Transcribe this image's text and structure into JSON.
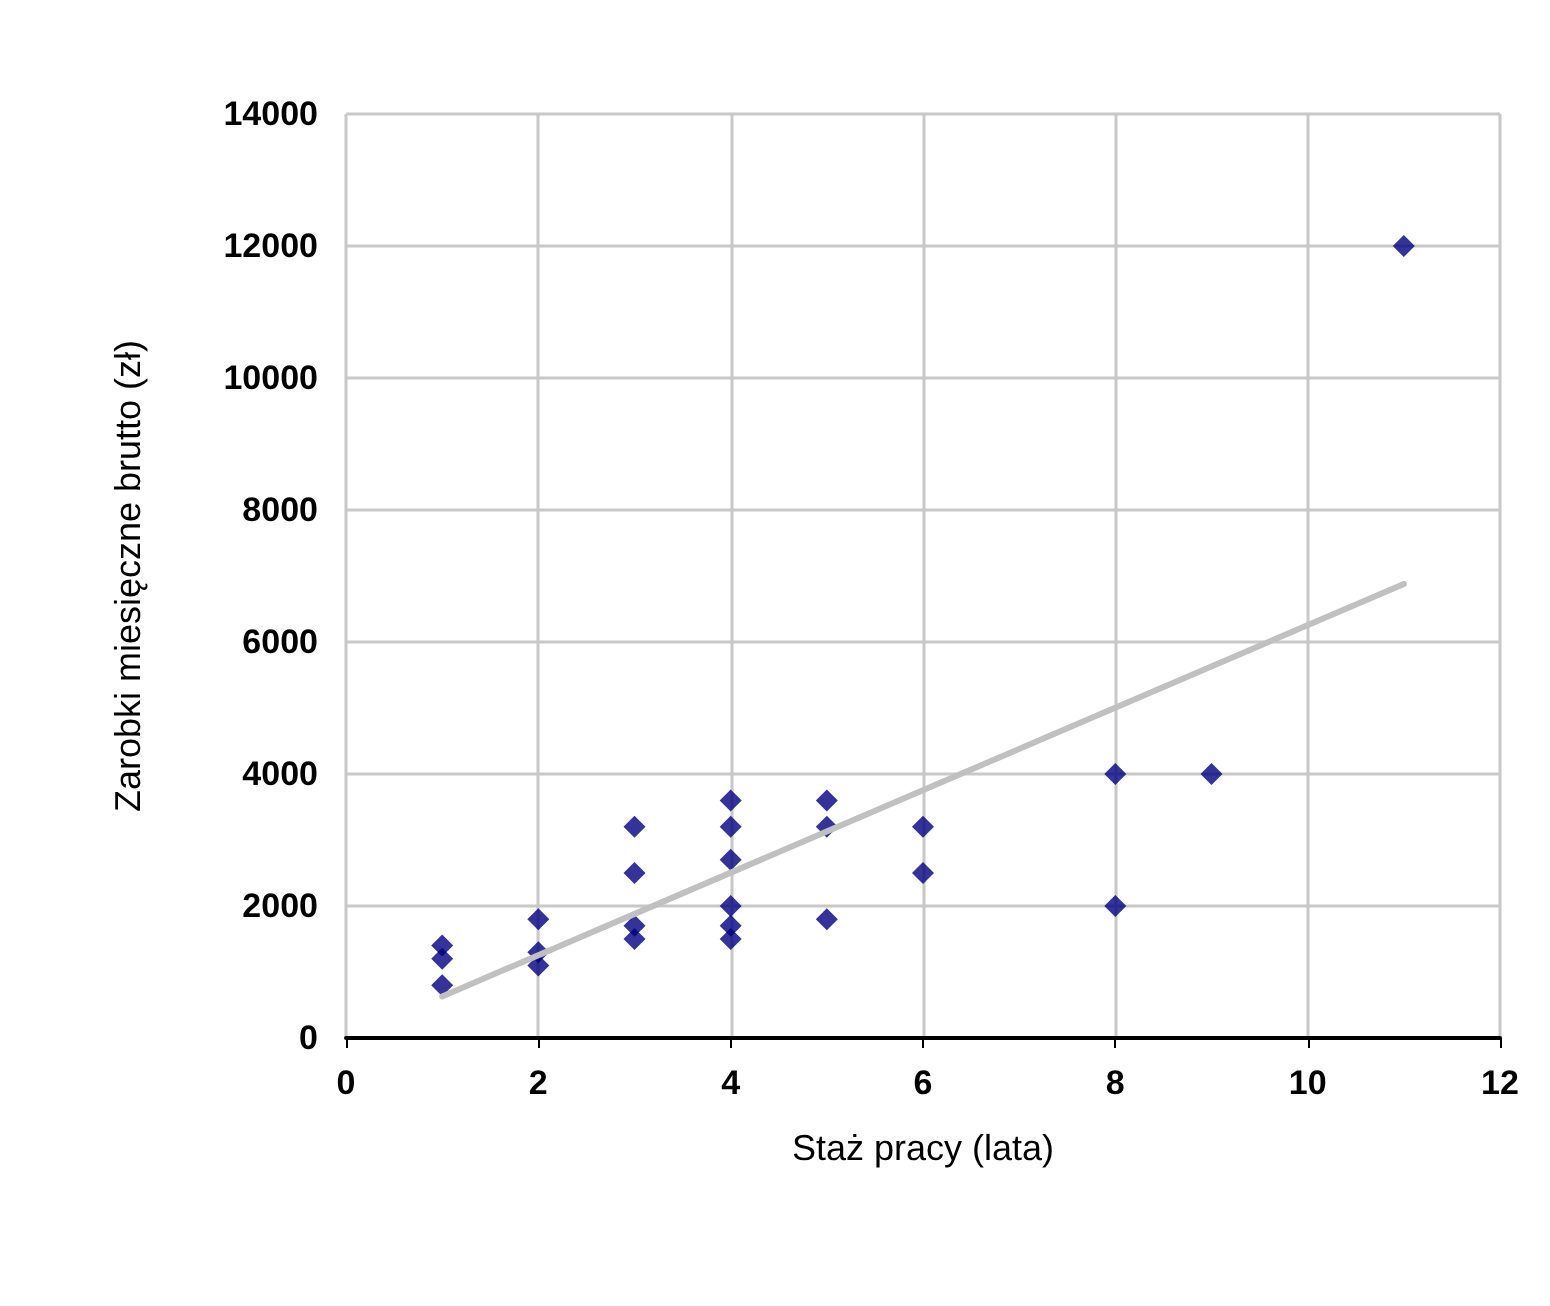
{
  "chart_data": {
    "type": "scatter",
    "xlabel": "Staż pracy (lata)",
    "ylabel": "Zarobki miesięczne brutto (zł)",
    "xlim": [
      0,
      12
    ],
    "xticks": [
      0,
      2,
      4,
      6,
      8,
      10,
      12
    ],
    "ylim": [
      0,
      14000
    ],
    "yticks": [
      0,
      2000,
      4000,
      6000,
      8000,
      10000,
      12000,
      14000
    ],
    "grid": true,
    "series": [
      {
        "color": "#000080",
        "marker": "diamond",
        "x": [
          1,
          1,
          1,
          2,
          2,
          2,
          3,
          3,
          3,
          3,
          4,
          4,
          4,
          4,
          4,
          4,
          5,
          5,
          5,
          6,
          6,
          8,
          8,
          9,
          11
        ],
        "values": [
          1400,
          1200,
          800,
          1800,
          1300,
          1100,
          3200,
          2500,
          1700,
          1500,
          3600,
          3200,
          2700,
          2000,
          1700,
          1500,
          3600,
          3200,
          1800,
          3200,
          2500,
          4000,
          2000,
          4000,
          12000
        ]
      },
      {
        "type": "line",
        "color": "#c0c0c0",
        "marker": "none",
        "x": [
          1,
          11
        ],
        "values": [
          630,
          6880
        ]
      }
    ]
  }
}
